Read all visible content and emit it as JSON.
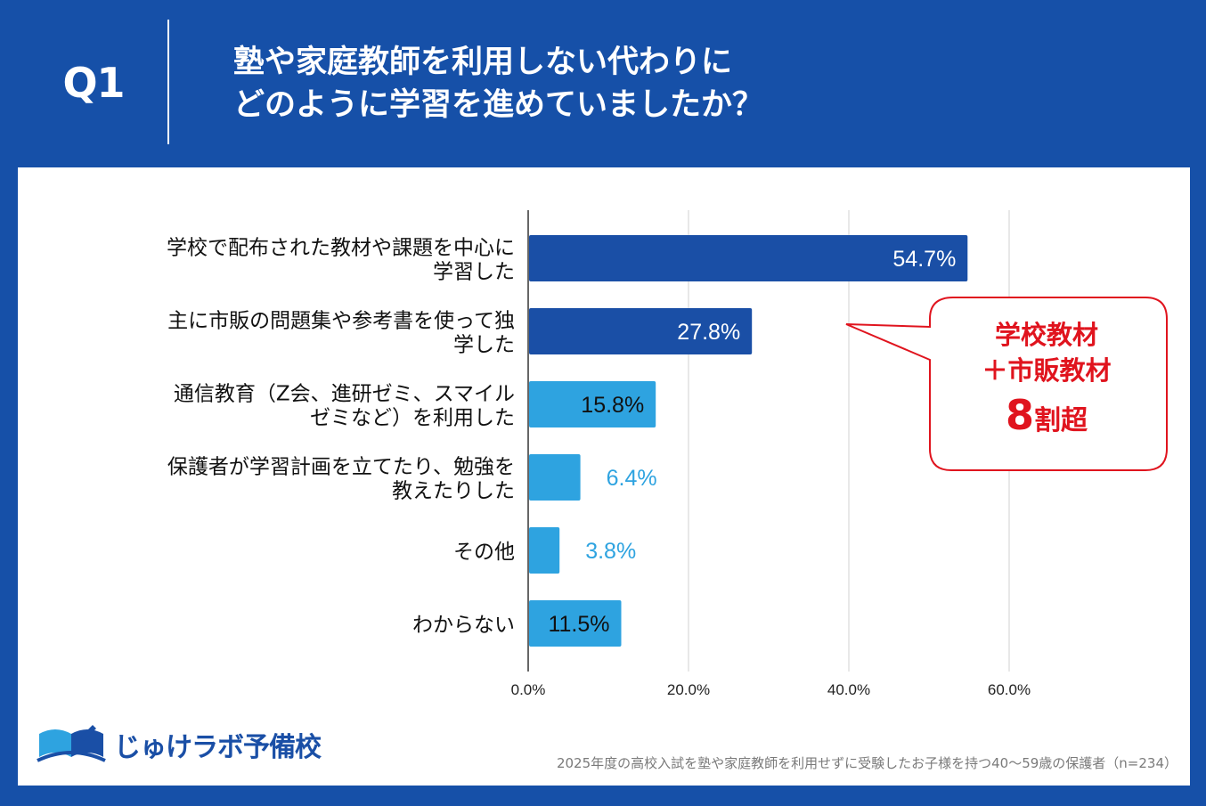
{
  "header": {
    "question_number": "Q1",
    "title_line1": "塾や家庭教師を利用しない代わりに",
    "title_line2": "どのように学習を進めていましたか？"
  },
  "colors": {
    "background": "#1650a8",
    "bar_dark": "#1a4fa6",
    "bar_light": "#2ea3e0",
    "callout": "#e0141e"
  },
  "chart_data": {
    "type": "bar",
    "orientation": "horizontal",
    "title": "",
    "xlabel": "",
    "ylabel": "",
    "xlim": [
      0,
      60
    ],
    "x_ticks": [
      "0.0%",
      "20.0%",
      "40.0%",
      "60.0%"
    ],
    "x_tick_values": [
      0,
      20,
      40,
      60
    ],
    "grid": true,
    "categories": [
      [
        "学校で配布された教材や課題を中心に",
        "学習した"
      ],
      [
        "主に市販の問題集や参考書を使って独",
        "学した"
      ],
      [
        "通信教育（Z会、進研ゼミ、スマイル",
        "ゼミなど）を利用した"
      ],
      [
        "保護者が学習計画を立てたり、勉強を",
        "教えたりした"
      ],
      [
        "その他"
      ],
      [
        "わからない"
      ]
    ],
    "values": [
      54.7,
      27.8,
      15.8,
      6.4,
      3.8,
      11.5
    ],
    "value_labels": [
      "54.7%",
      "27.8%",
      "15.8%",
      "6.4%",
      "3.8%",
      "11.5%"
    ],
    "bar_colors": [
      "#1a4fa6",
      "#1a4fa6",
      "#2ea3e0",
      "#2ea3e0",
      "#2ea3e0",
      "#2ea3e0"
    ],
    "label_inside": [
      true,
      true,
      true,
      false,
      false,
      true
    ],
    "label_colors": [
      "#ffffff",
      "#ffffff",
      "#111111",
      "#2ea3e0",
      "#2ea3e0",
      "#111111"
    ]
  },
  "callout": {
    "line1": "学校教材",
    "line2": "＋市販教材",
    "big_number": "8",
    "big_suffix": "割超"
  },
  "logo": {
    "text": "じゅけラボ予備校"
  },
  "source": "2025年度の高校入試を塾や家庭教師を利用せずに受験したお子様を持つ40～59歳の保護者（n=234）"
}
